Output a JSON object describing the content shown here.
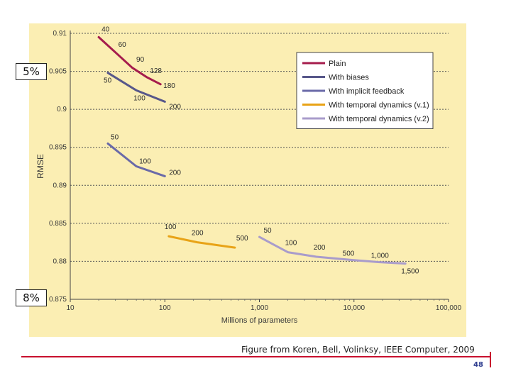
{
  "callouts": {
    "top": "5%",
    "bottom": "8%"
  },
  "caption": "Figure from Koren, Bell, Volinksy, IEEE Computer, 2009",
  "slide_number": "48",
  "chart_data": {
    "type": "line",
    "xlabel": "Millions of parameters",
    "ylabel": "RMSE",
    "xscale": "log",
    "xlim": [
      10,
      100000
    ],
    "ylim": [
      0.875,
      0.91
    ],
    "grid": true,
    "legend_position": "top-right",
    "x_ticks": [
      {
        "value": 10,
        "label": "10"
      },
      {
        "value": 100,
        "label": "100"
      },
      {
        "value": 1000,
        "label": "1,000"
      },
      {
        "value": 10000,
        "label": "10,000"
      },
      {
        "value": 100000,
        "label": "100,000"
      }
    ],
    "y_ticks": [
      {
        "value": 0.875,
        "label": "0.875"
      },
      {
        "value": 0.88,
        "label": "0.88"
      },
      {
        "value": 0.885,
        "label": "0.885"
      },
      {
        "value": 0.89,
        "label": "0.89"
      },
      {
        "value": 0.895,
        "label": "0.895"
      },
      {
        "value": 0.9,
        "label": "0.9"
      },
      {
        "value": 0.905,
        "label": "0.905"
      },
      {
        "value": 0.91,
        "label": "0.91"
      }
    ],
    "series": [
      {
        "name": "Plain",
        "color": "#a51c4d",
        "points": [
          {
            "x": 20,
            "y": 0.9095,
            "label": "40"
          },
          {
            "x": 30,
            "y": 0.9075,
            "label": "60"
          },
          {
            "x": 45,
            "y": 0.9055,
            "label": "90"
          },
          {
            "x": 65,
            "y": 0.9042,
            "label": "128"
          },
          {
            "x": 90,
            "y": 0.9033,
            "label": "180"
          }
        ]
      },
      {
        "name": "With biases",
        "color": "#57578a",
        "points": [
          {
            "x": 25,
            "y": 0.9048,
            "label": "50"
          },
          {
            "x": 50,
            "y": 0.9025,
            "label": "100"
          },
          {
            "x": 100,
            "y": 0.901,
            "label": "200"
          }
        ]
      },
      {
        "name": "With implicit feedback",
        "color": "#6a6aa8",
        "points": [
          {
            "x": 25,
            "y": 0.8955,
            "label": "50"
          },
          {
            "x": 50,
            "y": 0.8925,
            "label": "100"
          },
          {
            "x": 100,
            "y": 0.8912,
            "label": "200"
          }
        ]
      },
      {
        "name": "With temporal dynamics (v.1)",
        "color": "#e8a317",
        "points": [
          {
            "x": 110,
            "y": 0.8833,
            "label": "100"
          },
          {
            "x": 220,
            "y": 0.8825,
            "label": "200"
          },
          {
            "x": 550,
            "y": 0.8818,
            "label": "500"
          }
        ]
      },
      {
        "name": "With temporal dynamics (v.2)",
        "color": "#a99ccb",
        "points": [
          {
            "x": 1000,
            "y": 0.8832,
            "label": "50"
          },
          {
            "x": 2000,
            "y": 0.8812,
            "label": "100"
          },
          {
            "x": 4000,
            "y": 0.8806,
            "label": "200"
          },
          {
            "x": 9000,
            "y": 0.8802,
            "label": "500"
          },
          {
            "x": 18000,
            "y": 0.8799,
            "label": "1,000"
          },
          {
            "x": 35000,
            "y": 0.8797,
            "label": "1,500"
          }
        ]
      }
    ]
  }
}
